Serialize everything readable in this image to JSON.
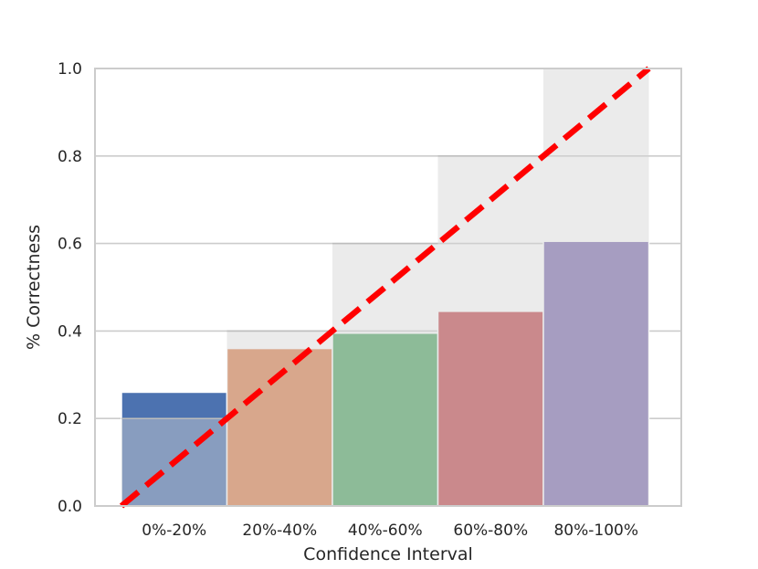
{
  "chart_data": {
    "type": "bar",
    "title": "",
    "xlabel": "Confidence Interval",
    "ylabel": "% Correctness",
    "categories": [
      "0%-20%",
      "20%-40%",
      "40%-60%",
      "60%-80%",
      "80%-100%"
    ],
    "values": [
      0.26,
      0.36,
      0.395,
      0.445,
      0.605
    ],
    "expected": [
      0.2,
      0.4,
      0.6,
      0.8,
      1.0
    ],
    "ylim": [
      0,
      1.0
    ],
    "yticks": [
      0.0,
      0.2,
      0.4,
      0.6,
      0.8,
      1.0
    ],
    "ytick_labels": [
      "0.0",
      "0.2",
      "0.4",
      "0.6",
      "0.8",
      "1.0"
    ],
    "grid": true,
    "bar_colors": [
      "#4c72b0",
      "#dd8452",
      "#55a868",
      "#c44e52",
      "#8172b3"
    ],
    "expected_color": "#d3d3d3",
    "diagonal": {
      "from": [
        0,
        0
      ],
      "to": [
        1,
        1
      ],
      "color": "#ff0000",
      "style": "dashed"
    }
  }
}
